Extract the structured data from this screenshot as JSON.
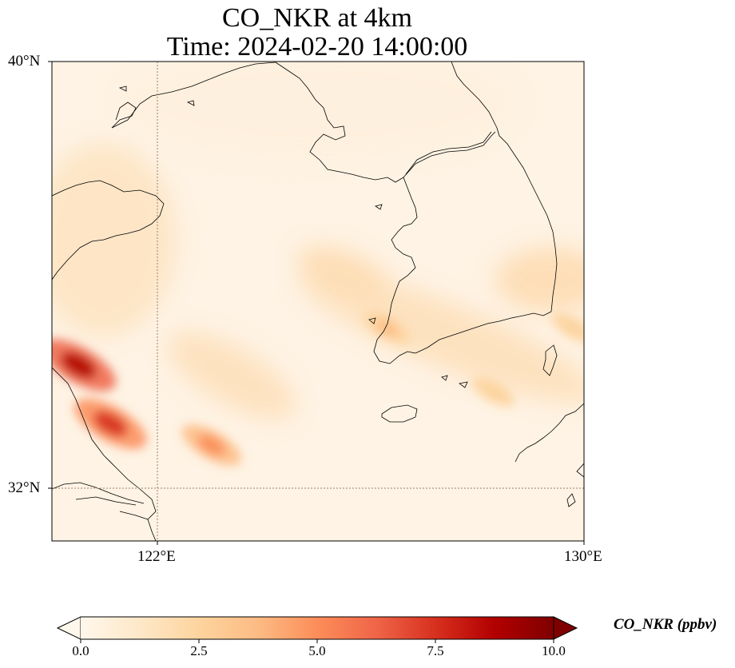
{
  "title_line1": "CO_NKR at 4km",
  "title_line2": "Time: 2024-02-20 14:00:00",
  "map": {
    "extent_lon": [
      120.0,
      130.0
    ],
    "extent_lat": [
      31.0,
      40.0
    ],
    "lat_labels": [
      "40°N",
      "32°N"
    ],
    "lon_labels": [
      "122°E",
      "130°E"
    ],
    "gridlines_lon": [
      122
    ],
    "gridlines_lat": [
      32
    ],
    "variable": "CO_NKR",
    "colormap": "OrRd",
    "plumes": [
      {
        "lon": 120.5,
        "lat": 34.3,
        "value": 8.2
      },
      {
        "lon": 121.1,
        "lat": 33.2,
        "value": 7.8
      },
      {
        "lon": 123.0,
        "lat": 32.8,
        "value": 5.6
      },
      {
        "lon": 126.3,
        "lat": 35.0,
        "value": 3.4
      },
      {
        "lon": 128.3,
        "lat": 33.8,
        "value": 2.8
      },
      {
        "lon": 129.8,
        "lat": 35.0,
        "value": 3.0
      }
    ]
  },
  "colorbar": {
    "label": "CO_NKR (ppbv)",
    "min": 0.0,
    "max": 10.0,
    "ticks": [
      "0.0",
      "2.5",
      "5.0",
      "7.5",
      "10.0"
    ],
    "colors": [
      "#fff7ec",
      "#fee8c8",
      "#fdd49e",
      "#fdbb84",
      "#fc8d59",
      "#ef6548",
      "#d7301f",
      "#b30000",
      "#7f0000"
    ]
  }
}
